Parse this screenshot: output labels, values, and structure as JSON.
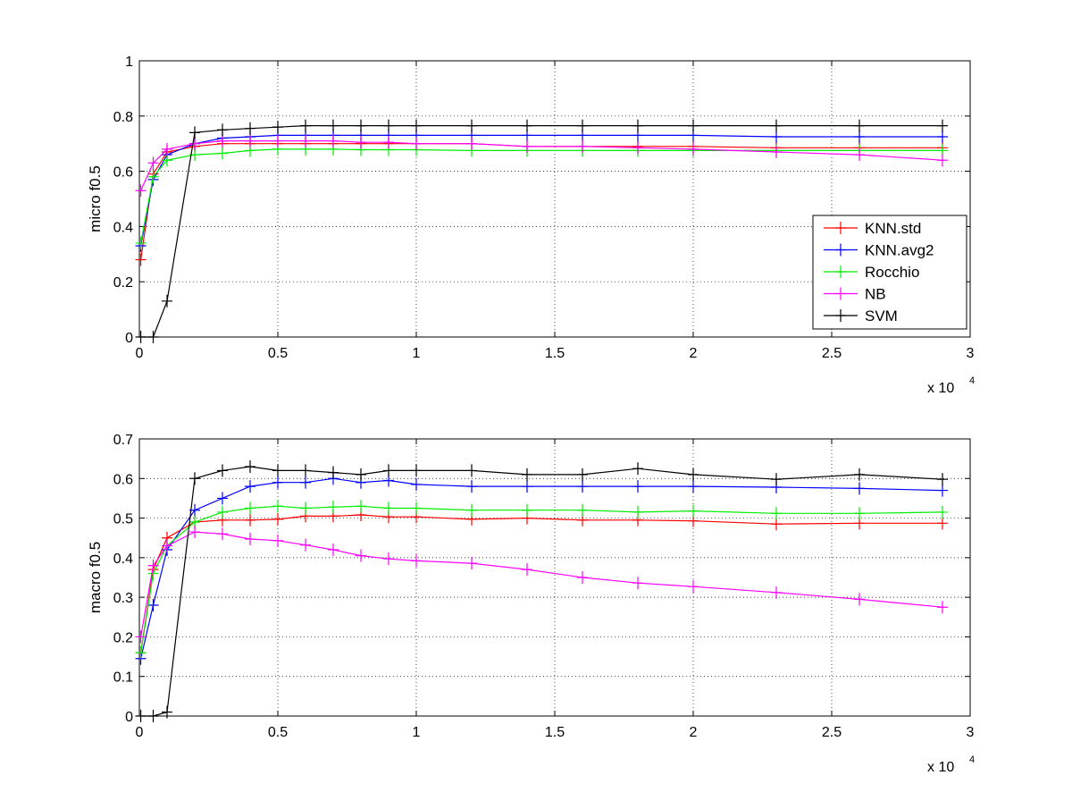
{
  "chart_data": [
    {
      "type": "line",
      "ylabel": "micro f0.5",
      "xlabel": "",
      "x_multiplier_label": "x 10",
      "x_multiplier_exp": "4",
      "xlim": [
        0,
        30000
      ],
      "ylim": [
        0,
        1
      ],
      "xticks": [
        0,
        5000,
        10000,
        15000,
        20000,
        25000,
        30000
      ],
      "xtick_labels": [
        "0",
        "0.5",
        "1",
        "1.5",
        "2",
        "2.5",
        "3"
      ],
      "yticks": [
        0,
        0.2,
        0.4,
        0.6,
        0.8,
        1
      ],
      "ytick_labels": [
        "0",
        "0.2",
        "0.4",
        "0.6",
        "0.8",
        "1"
      ],
      "grid": true,
      "legend_position": "lower-right",
      "x": [
        50,
        500,
        1000,
        2000,
        3000,
        4000,
        5000,
        6000,
        7000,
        8000,
        9000,
        10000,
        12000,
        14000,
        16000,
        18000,
        20000,
        23000,
        26000,
        29000
      ],
      "series": [
        {
          "name": "KNN.std",
          "color": "#ff0000",
          "values": [
            0.28,
            0.59,
            0.67,
            0.69,
            0.7,
            0.7,
            0.7,
            0.7,
            0.7,
            0.7,
            0.7,
            0.7,
            0.7,
            0.69,
            0.69,
            0.69,
            0.69,
            0.685,
            0.685,
            0.685
          ]
        },
        {
          "name": "KNN.avg2",
          "color": "#0000ff",
          "values": [
            0.33,
            0.57,
            0.66,
            0.7,
            0.72,
            0.725,
            0.73,
            0.73,
            0.73,
            0.73,
            0.73,
            0.73,
            0.73,
            0.73,
            0.73,
            0.73,
            0.73,
            0.725,
            0.725,
            0.725
          ]
        },
        {
          "name": "Rocchio",
          "color": "#00ee00",
          "values": [
            0.34,
            0.58,
            0.64,
            0.66,
            0.665,
            0.675,
            0.68,
            0.68,
            0.68,
            0.678,
            0.678,
            0.678,
            0.675,
            0.675,
            0.675,
            0.675,
            0.675,
            0.675,
            0.675,
            0.675
          ]
        },
        {
          "name": "NB",
          "color": "#ff00ff",
          "values": [
            0.53,
            0.63,
            0.68,
            0.7,
            0.71,
            0.71,
            0.71,
            0.71,
            0.71,
            0.705,
            0.705,
            0.7,
            0.7,
            0.69,
            0.69,
            0.685,
            0.68,
            0.67,
            0.66,
            0.64
          ]
        },
        {
          "name": "SVM",
          "color": "#000000",
          "values": [
            0.0,
            0.0,
            0.13,
            0.74,
            0.75,
            0.755,
            0.76,
            0.765,
            0.765,
            0.765,
            0.765,
            0.765,
            0.765,
            0.765,
            0.765,
            0.765,
            0.765,
            0.765,
            0.765,
            0.765
          ]
        }
      ]
    },
    {
      "type": "line",
      "ylabel": "macro f0.5",
      "xlabel": "",
      "x_multiplier_label": "x 10",
      "x_multiplier_exp": "4",
      "xlim": [
        0,
        30000
      ],
      "ylim": [
        0,
        0.7
      ],
      "xticks": [
        0,
        5000,
        10000,
        15000,
        20000,
        25000,
        30000
      ],
      "xtick_labels": [
        "0",
        "0.5",
        "1",
        "1.5",
        "2",
        "2.5",
        "3"
      ],
      "yticks": [
        0,
        0.1,
        0.2,
        0.3,
        0.4,
        0.5,
        0.6,
        0.7
      ],
      "ytick_labels": [
        "0",
        "0.1",
        "0.2",
        "0.3",
        "0.4",
        "0.5",
        "0.6",
        "0.7"
      ],
      "grid": true,
      "x": [
        50,
        500,
        1000,
        2000,
        3000,
        4000,
        5000,
        6000,
        7000,
        8000,
        9000,
        10000,
        12000,
        14000,
        16000,
        18000,
        20000,
        23000,
        26000,
        29000
      ],
      "series": [
        {
          "name": "KNN.std",
          "color": "#ff0000",
          "values": [
            0.16,
            0.37,
            0.45,
            0.49,
            0.495,
            0.495,
            0.497,
            0.505,
            0.505,
            0.508,
            0.503,
            0.503,
            0.497,
            0.5,
            0.495,
            0.495,
            0.493,
            0.485,
            0.487,
            0.487
          ]
        },
        {
          "name": "KNN.avg2",
          "color": "#0000ff",
          "values": [
            0.145,
            0.28,
            0.42,
            0.52,
            0.55,
            0.58,
            0.59,
            0.59,
            0.6,
            0.59,
            0.595,
            0.585,
            0.58,
            0.58,
            0.58,
            0.58,
            0.58,
            0.578,
            0.575,
            0.57
          ]
        },
        {
          "name": "Rocchio",
          "color": "#00ee00",
          "values": [
            0.16,
            0.36,
            0.43,
            0.49,
            0.515,
            0.525,
            0.53,
            0.525,
            0.528,
            0.53,
            0.525,
            0.525,
            0.52,
            0.52,
            0.52,
            0.515,
            0.518,
            0.512,
            0.512,
            0.515
          ]
        },
        {
          "name": "NB",
          "color": "#ff00ff",
          "values": [
            0.2,
            0.38,
            0.43,
            0.465,
            0.46,
            0.447,
            0.443,
            0.432,
            0.42,
            0.405,
            0.397,
            0.392,
            0.386,
            0.37,
            0.35,
            0.336,
            0.327,
            0.312,
            0.295,
            0.275
          ]
        },
        {
          "name": "SVM",
          "color": "#000000",
          "values": [
            0.0,
            0.0,
            0.01,
            0.6,
            0.62,
            0.63,
            0.62,
            0.62,
            0.615,
            0.61,
            0.62,
            0.62,
            0.62,
            0.61,
            0.61,
            0.625,
            0.61,
            0.598,
            0.61,
            0.598
          ]
        }
      ]
    }
  ]
}
